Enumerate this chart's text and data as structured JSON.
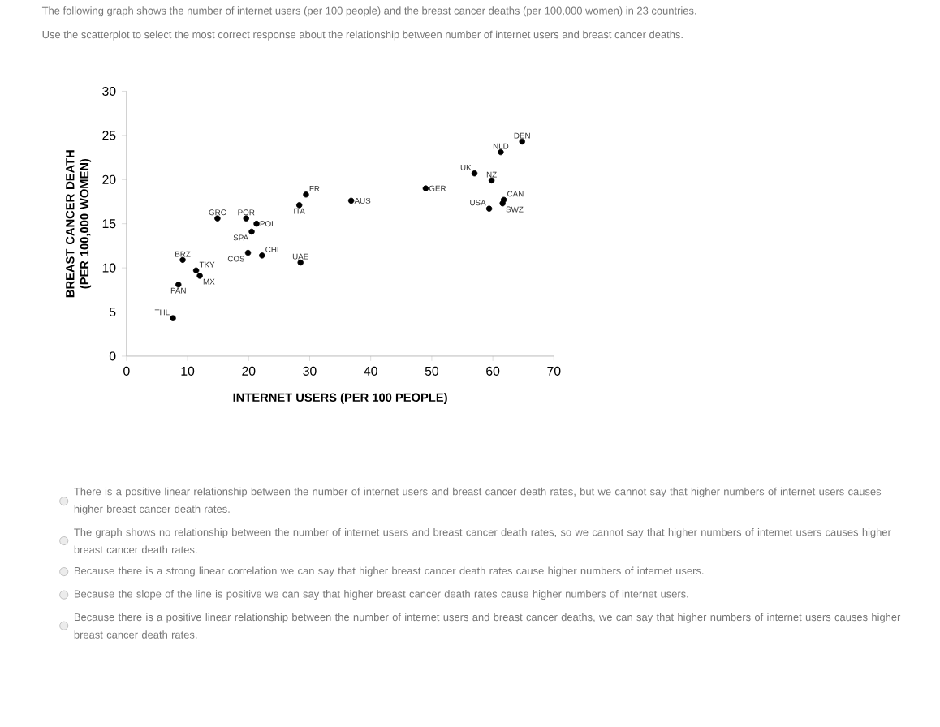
{
  "chart_data": {
    "type": "scatter",
    "title": "The following graph shows the number of internet users (per 100 people) and the breast cancer deaths (per 100,000 women) in 23 countries.",
    "subtitle": "Use the scatterplot to select the most correct response about the relationship between number of internet users and breast cancer deaths.",
    "xlabel": "INTERNET USERS (PER 100 PEOPLE)",
    "ylabel": "BREAST CANCER DEATH (PER 100,000 WOMEN)",
    "x": [
      7.6,
      8.5,
      9.2,
      11.4,
      12.0,
      14.9,
      19.6,
      21.3,
      20.5,
      19.9,
      22.2,
      28.5,
      28.3,
      29.4,
      36.8,
      49.0,
      57.0,
      59.8,
      61.3,
      64.8,
      61.8,
      61.6,
      59.4
    ],
    "values": [
      4.3,
      8.1,
      10.9,
      9.7,
      9.1,
      15.6,
      15.6,
      15.0,
      14.1,
      11.7,
      11.4,
      10.6,
      17.1,
      18.3,
      17.6,
      19.0,
      20.7,
      19.9,
      23.1,
      24.3,
      17.7,
      17.3,
      16.7
    ],
    "color": "#000000",
    "xlim": [
      0,
      70
    ],
    "ylim": [
      0,
      30
    ],
    "xticks": [
      0,
      10,
      20,
      30,
      40,
      50,
      60,
      70
    ],
    "yticks": [
      0,
      5,
      10,
      15,
      20,
      25,
      30
    ],
    "annotations": [
      {
        "text": "THL",
        "x": 7.6,
        "y": 4.3
      },
      {
        "text": "PAN",
        "x": 8.5,
        "y": 8.1
      },
      {
        "text": "BRZ",
        "x": 9.2,
        "y": 10.9
      },
      {
        "text": "TKY",
        "x": 11.4,
        "y": 9.7
      },
      {
        "text": "MX",
        "x": 12.0,
        "y": 9.1
      },
      {
        "text": "GRC",
        "x": 14.9,
        "y": 15.6
      },
      {
        "text": "POR",
        "x": 19.6,
        "y": 15.6
      },
      {
        "text": "POL",
        "x": 21.3,
        "y": 15.0
      },
      {
        "text": "SPA",
        "x": 20.5,
        "y": 14.1
      },
      {
        "text": "COS",
        "x": 19.9,
        "y": 11.7
      },
      {
        "text": "CHI",
        "x": 22.2,
        "y": 11.4
      },
      {
        "text": "UAE",
        "x": 28.5,
        "y": 10.6
      },
      {
        "text": "ITA",
        "x": 28.3,
        "y": 17.1
      },
      {
        "text": "FR",
        "x": 29.4,
        "y": 18.3
      },
      {
        "text": "AUS",
        "x": 36.8,
        "y": 17.6
      },
      {
        "text": "GER",
        "x": 49.0,
        "y": 19.0
      },
      {
        "text": "UK",
        "x": 57.0,
        "y": 20.7
      },
      {
        "text": "NZ",
        "x": 59.8,
        "y": 19.9
      },
      {
        "text": "NLD",
        "x": 61.3,
        "y": 23.1
      },
      {
        "text": "DEN",
        "x": 64.8,
        "y": 24.3
      },
      {
        "text": "CAN",
        "x": 61.8,
        "y": 17.7
      },
      {
        "text": "SWZ",
        "x": 61.6,
        "y": 17.3
      },
      {
        "text": "USA",
        "x": 59.4,
        "y": 16.7
      },
      "There is a positive linear relationship between the number of internet users and breast cancer death rates, but we cannot say that higher numbers of internet users causes higher breast cancer death rates.",
      "The graph shows no relationship between the number of internet users and breast cancer death rates, so we cannot say that higher numbers of internet users causes higher breast cancer death rates.",
      "Because there is a strong linear correlation we can say that higher breast cancer death rates cause higher numbers of internet users.",
      "Because the slope of the line is positive we can say that higher breast cancer death rates cause higher numbers of internet users.",
      "Because there is a positive linear relationship between the number of internet users and breast cancer deaths, we can say that higher numbers of internet users causes higher breast cancer death rates."
    ]
  }
}
